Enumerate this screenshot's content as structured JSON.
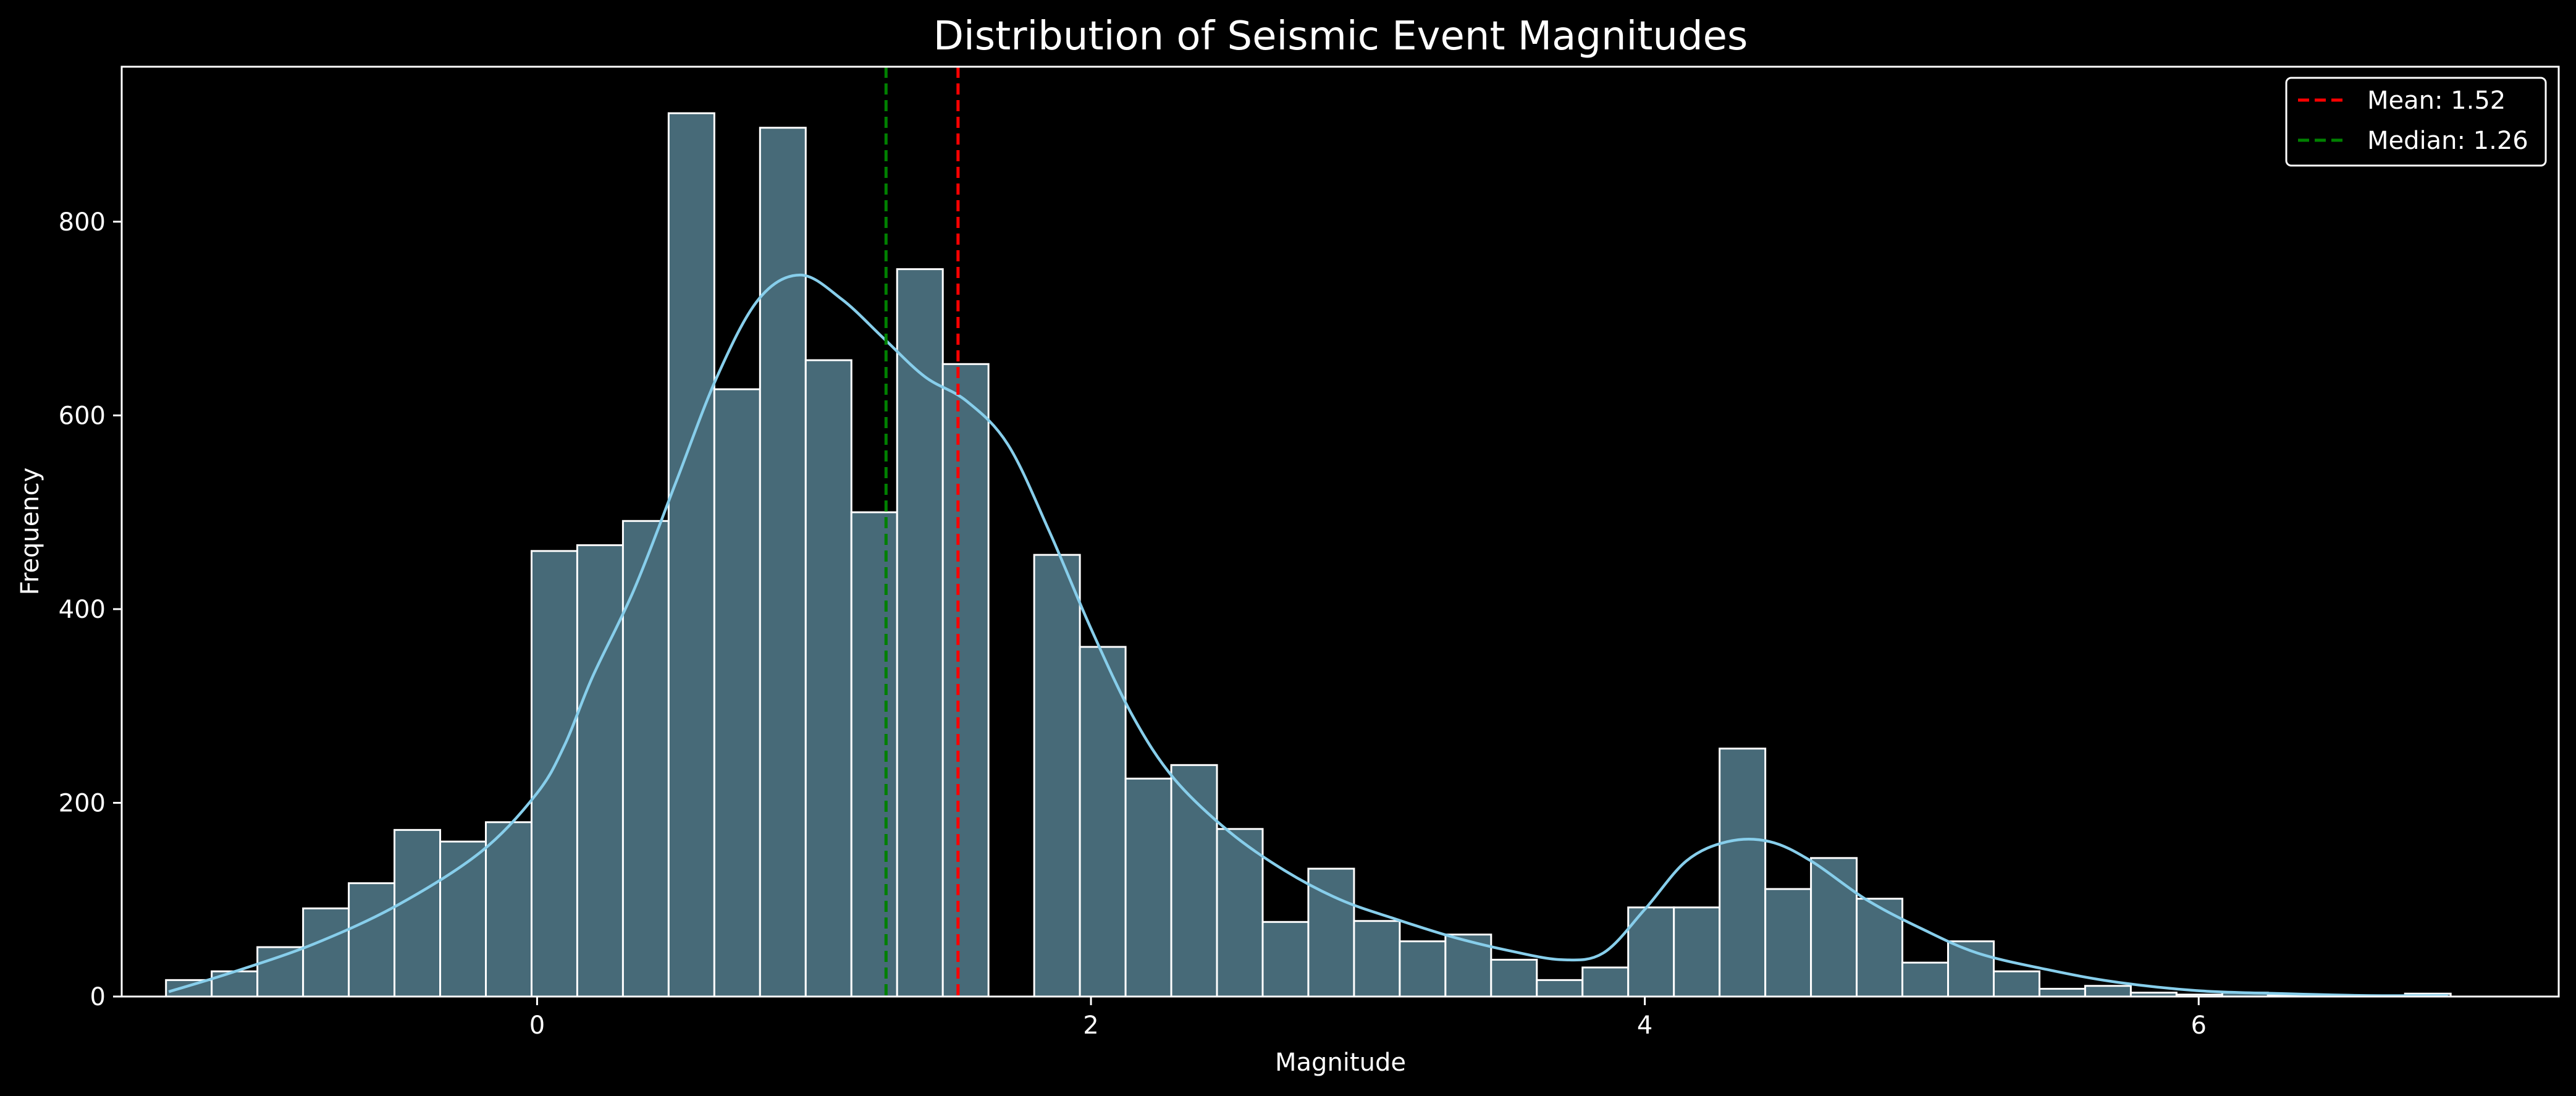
{
  "chart_data": {
    "type": "bar",
    "title": "Distribution of Seismic Event Magnitudes",
    "xlabel": "Magnitude",
    "ylabel": "Frequency",
    "xlim": [
      -1.5,
      7.3
    ],
    "ylim": [
      0,
      960
    ],
    "xticks": [
      0,
      2,
      4,
      6
    ],
    "yticks": [
      0,
      200,
      400,
      600,
      800
    ],
    "grid": false,
    "legend_position": "top-right",
    "bin_width": 0.165,
    "bin_start": -1.34,
    "bin_counts": [
      17,
      26,
      51,
      91,
      117,
      172,
      160,
      180,
      460,
      466,
      491,
      912,
      627,
      897,
      657,
      500,
      751,
      653,
      0,
      456,
      361,
      225,
      239,
      173,
      77,
      132,
      78,
      57,
      64,
      38,
      17,
      30,
      92,
      92,
      256,
      111,
      143,
      101,
      35,
      57,
      26,
      8,
      11,
      4,
      2,
      4,
      1,
      1,
      1,
      3
    ],
    "kde": {
      "x": [
        -1.33,
        -1.1,
        -0.8,
        -0.5,
        -0.2,
        0.0,
        0.1,
        0.2,
        0.35,
        0.5,
        0.65,
        0.8,
        0.95,
        1.1,
        1.25,
        1.4,
        1.55,
        1.7,
        1.85,
        2.0,
        2.15,
        2.3,
        2.5,
        2.7,
        2.9,
        3.1,
        3.3,
        3.5,
        3.7,
        3.85,
        4.0,
        4.15,
        4.3,
        4.45,
        4.6,
        4.8,
        5.0,
        5.2,
        5.45,
        5.7,
        6.0,
        6.3,
        6.6,
        6.9
      ],
      "y": [
        5,
        25,
        55,
        95,
        150,
        210,
        260,
        330,
        420,
        530,
        640,
        720,
        745,
        720,
        680,
        640,
        615,
        570,
        480,
        380,
        290,
        225,
        170,
        130,
        100,
        80,
        62,
        48,
        38,
        45,
        90,
        140,
        160,
        160,
        140,
        100,
        70,
        45,
        28,
        15,
        6,
        3,
        1,
        1
      ]
    },
    "series": [
      {
        "name": "Mean: 1.52",
        "value": 1.52,
        "color": "#ff0000"
      },
      {
        "name": "Median: 1.26",
        "value": 1.26,
        "color": "#008000"
      }
    ],
    "colors": {
      "bar_fill": "#476a78",
      "bar_edge": "#ffffff",
      "kde_line": "#87ceeb",
      "background": "#000000",
      "axes": "#ffffff"
    }
  }
}
